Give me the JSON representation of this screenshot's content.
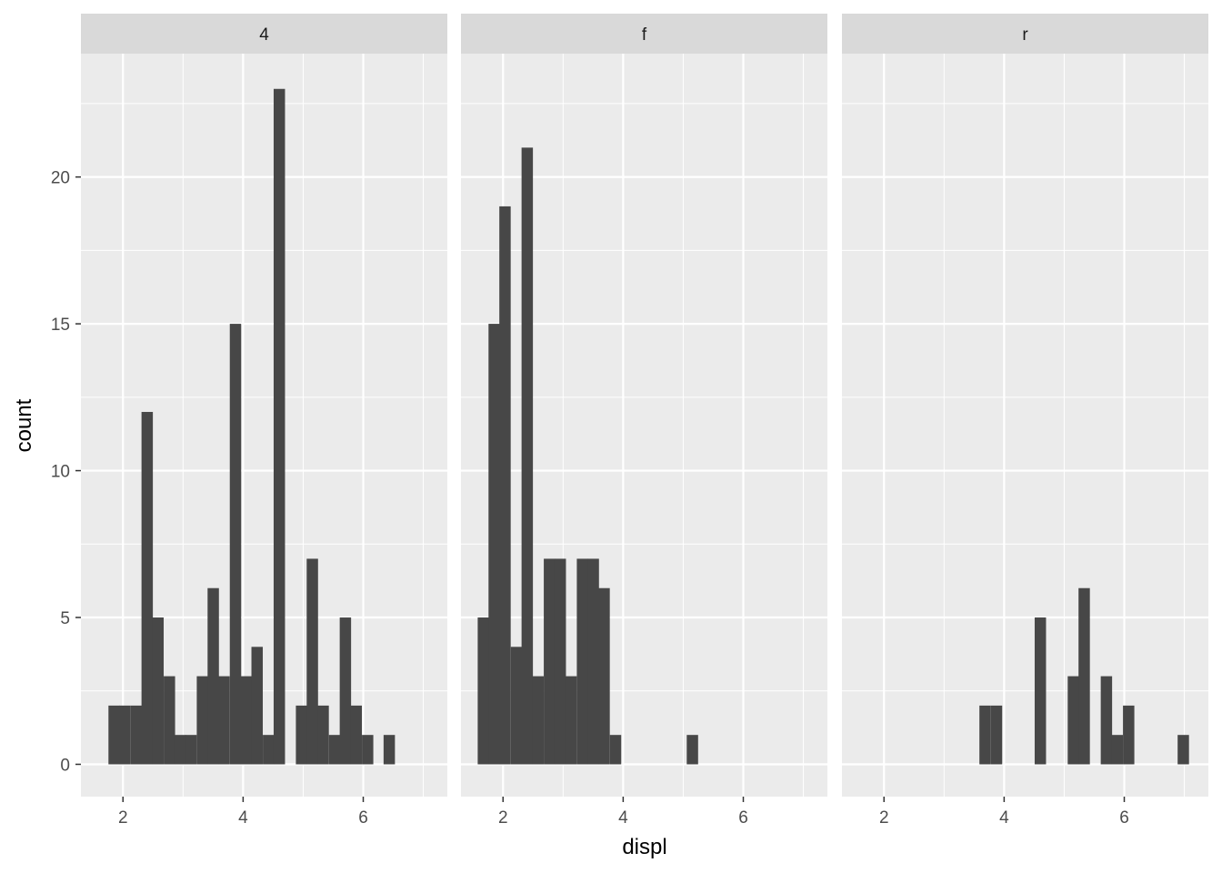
{
  "chart_data": {
    "type": "bar",
    "subtype": "faceted-histogram",
    "xlabel": "displ",
    "ylabel": "count",
    "xlim": [
      1.3,
      7.4
    ],
    "ylim": [
      -1.1,
      24.2
    ],
    "x_ticks": [
      2,
      4,
      6
    ],
    "y_ticks": [
      0,
      5,
      10,
      15,
      20
    ],
    "grid": true,
    "bin_width": 0.183,
    "facets": [
      {
        "label": "4",
        "bins": [
          {
            "x": 1.85,
            "count": 2
          },
          {
            "x": 2.03,
            "count": 2
          },
          {
            "x": 2.22,
            "count": 2
          },
          {
            "x": 2.4,
            "count": 12
          },
          {
            "x": 2.58,
            "count": 5
          },
          {
            "x": 2.77,
            "count": 3
          },
          {
            "x": 2.95,
            "count": 1
          },
          {
            "x": 3.13,
            "count": 1
          },
          {
            "x": 3.32,
            "count": 3
          },
          {
            "x": 3.5,
            "count": 6
          },
          {
            "x": 3.68,
            "count": 3
          },
          {
            "x": 3.87,
            "count": 15
          },
          {
            "x": 4.05,
            "count": 3
          },
          {
            "x": 4.23,
            "count": 4
          },
          {
            "x": 4.42,
            "count": 1
          },
          {
            "x": 4.6,
            "count": 23
          },
          {
            "x": 4.97,
            "count": 2
          },
          {
            "x": 5.15,
            "count": 7
          },
          {
            "x": 5.33,
            "count": 2
          },
          {
            "x": 5.52,
            "count": 1
          },
          {
            "x": 5.7,
            "count": 5
          },
          {
            "x": 5.88,
            "count": 2
          },
          {
            "x": 6.07,
            "count": 1
          },
          {
            "x": 6.43,
            "count": 1
          }
        ]
      },
      {
        "label": "f",
        "bins": [
          {
            "x": 1.67,
            "count": 5
          },
          {
            "x": 1.85,
            "count": 15
          },
          {
            "x": 2.03,
            "count": 19
          },
          {
            "x": 2.22,
            "count": 4
          },
          {
            "x": 2.4,
            "count": 21
          },
          {
            "x": 2.58,
            "count": 3
          },
          {
            "x": 2.77,
            "count": 7
          },
          {
            "x": 2.95,
            "count": 7
          },
          {
            "x": 3.13,
            "count": 3
          },
          {
            "x": 3.32,
            "count": 7
          },
          {
            "x": 3.5,
            "count": 7
          },
          {
            "x": 3.68,
            "count": 6
          },
          {
            "x": 3.87,
            "count": 1
          },
          {
            "x": 5.15,
            "count": 1
          }
        ]
      },
      {
        "label": "r",
        "bins": [
          {
            "x": 3.68,
            "count": 2
          },
          {
            "x": 3.87,
            "count": 2
          },
          {
            "x": 4.6,
            "count": 5
          },
          {
            "x": 5.15,
            "count": 3
          },
          {
            "x": 5.33,
            "count": 6
          },
          {
            "x": 5.7,
            "count": 3
          },
          {
            "x": 5.88,
            "count": 1
          },
          {
            "x": 6.07,
            "count": 2
          },
          {
            "x": 6.98,
            "count": 1
          }
        ]
      }
    ],
    "colors": {
      "bar": "#474747",
      "panel": "#ebebeb",
      "strip": "#d9d9d9",
      "grid": "#ffffff",
      "tick": "#333333"
    }
  }
}
